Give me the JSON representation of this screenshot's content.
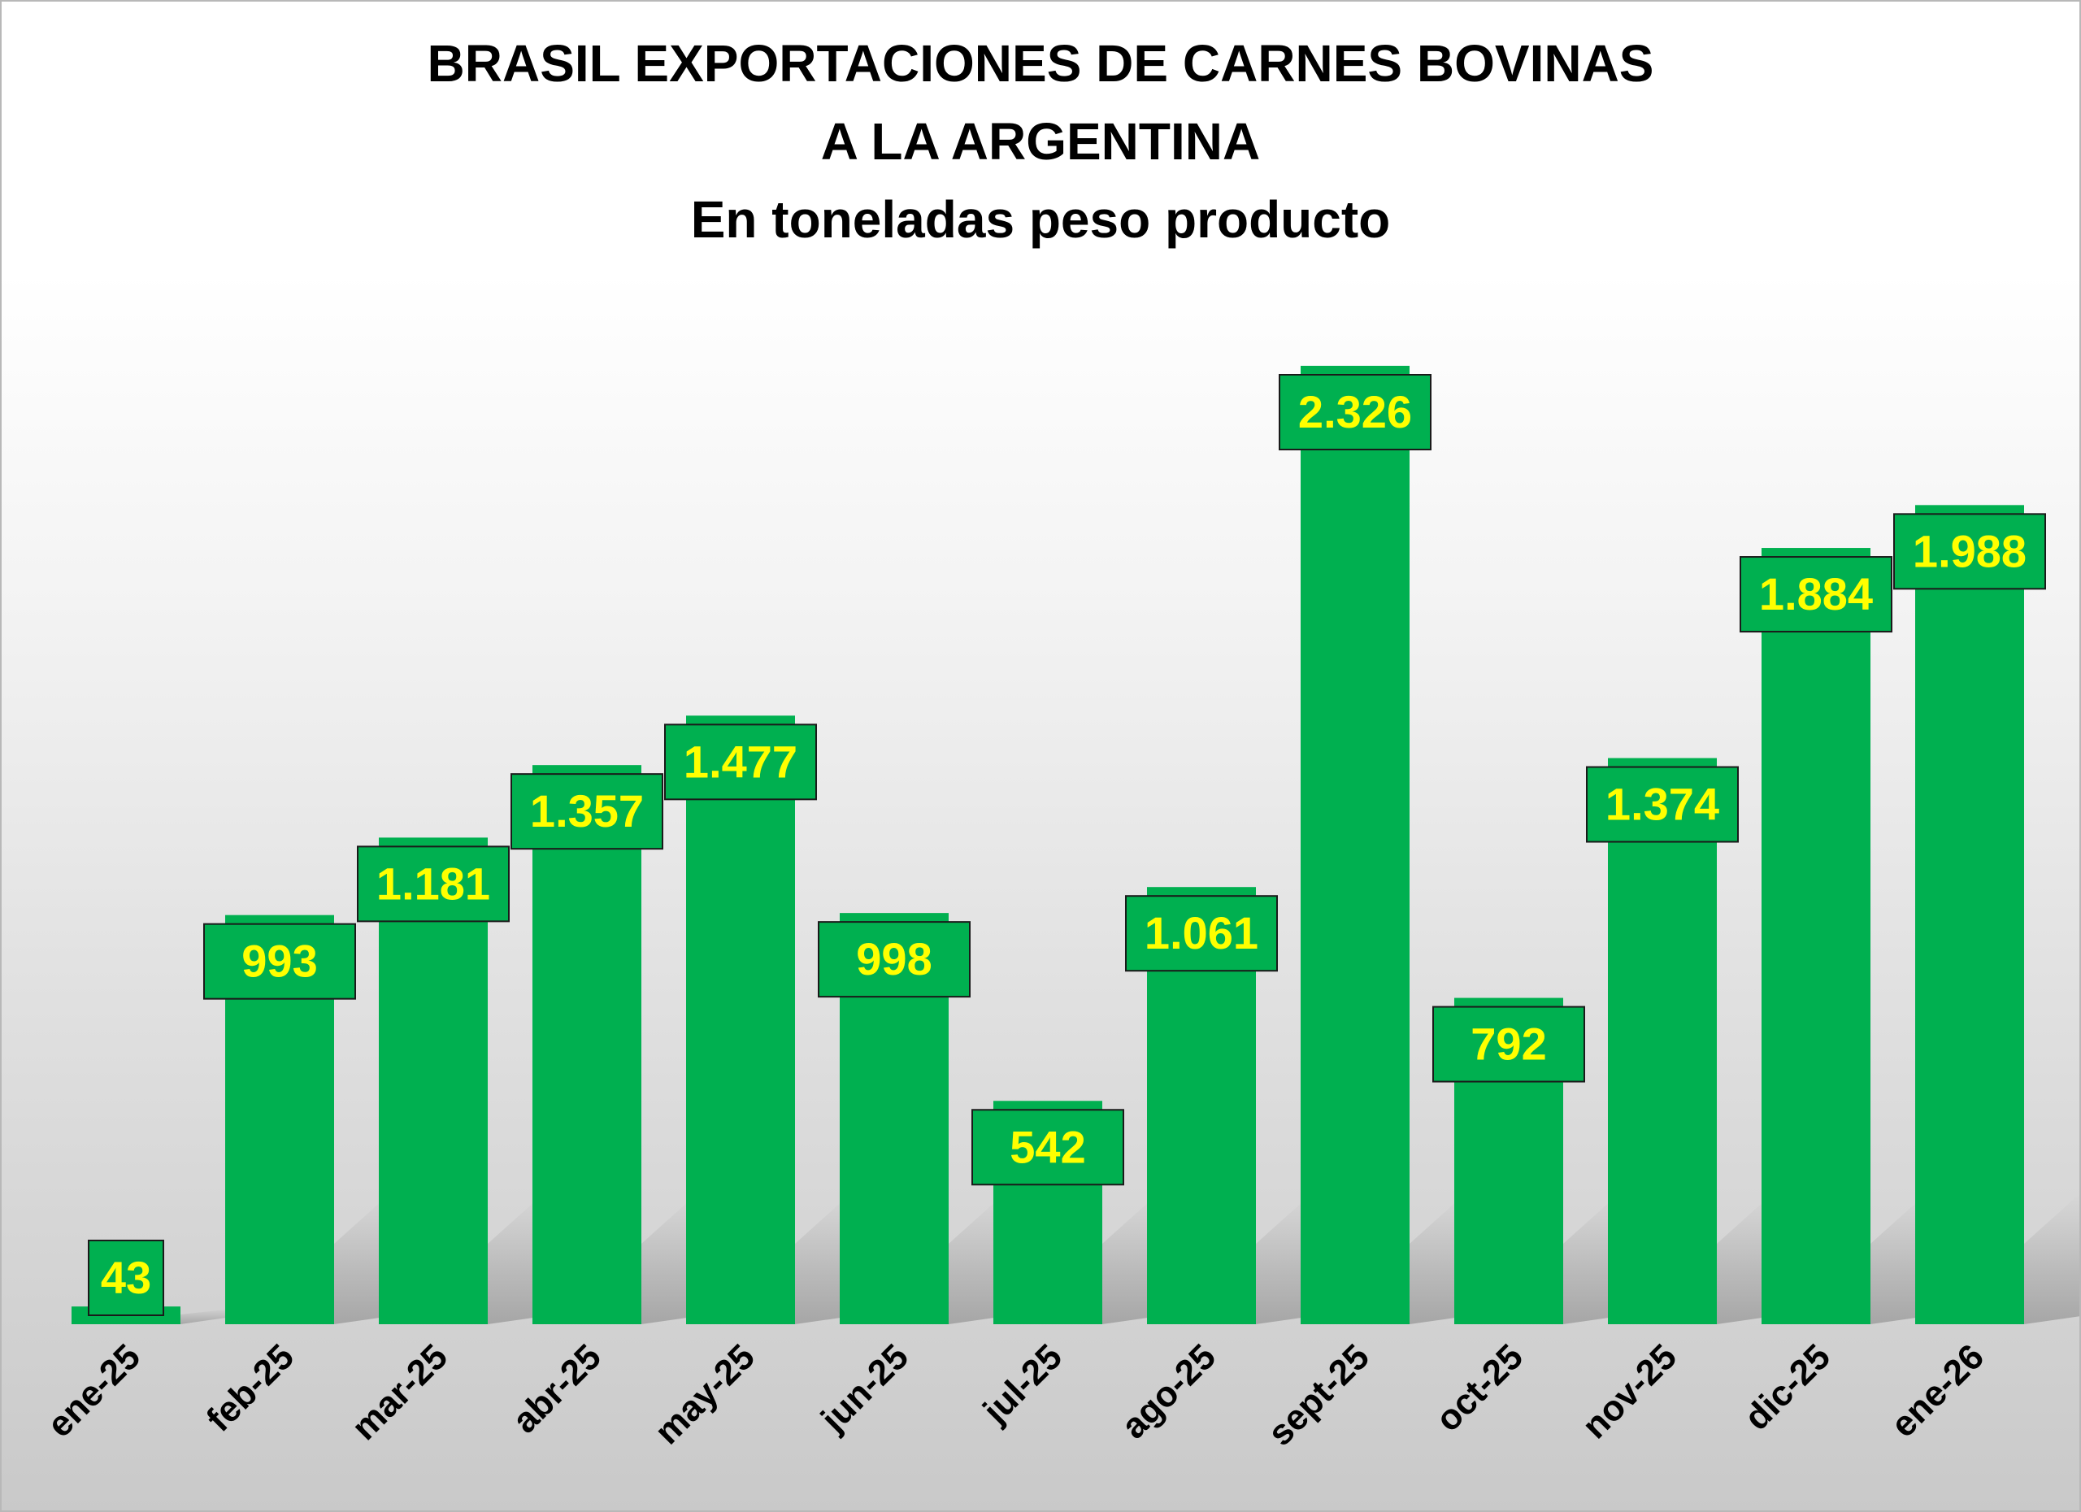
{
  "chart_data": {
    "type": "bar",
    "title_lines": [
      "BRASIL EXPORTACIONES DE CARNES BOVINAS",
      "A LA ARGENTINA",
      "En toneladas peso producto"
    ],
    "categories": [
      "ene-25",
      "feb-25",
      "mar-25",
      "abr-25",
      "may-25",
      "jun-25",
      "jul-25",
      "ago-25",
      "sept-25",
      "oct-25",
      "nov-25",
      "dic-25",
      "ene-26"
    ],
    "values": [
      43,
      993,
      1181,
      1357,
      1477,
      998,
      542,
      1061,
      2326,
      792,
      1374,
      1884,
      1988
    ],
    "data_labels": [
      "43",
      "993",
      "1.181",
      "1.357",
      "1.477",
      "998",
      "542",
      "1.061",
      "2.326",
      "792",
      "1.374",
      "1.884",
      "1.988"
    ],
    "xlabel": "",
    "ylabel": "",
    "ylim": [
      0,
      2326
    ],
    "grid": false,
    "legend": "none",
    "colors": {
      "bar": "#00b050",
      "label_box": "#00b050",
      "label_text": "#ffff00",
      "label_border": "#1a1a1a",
      "axis_text": "#000000"
    }
  }
}
